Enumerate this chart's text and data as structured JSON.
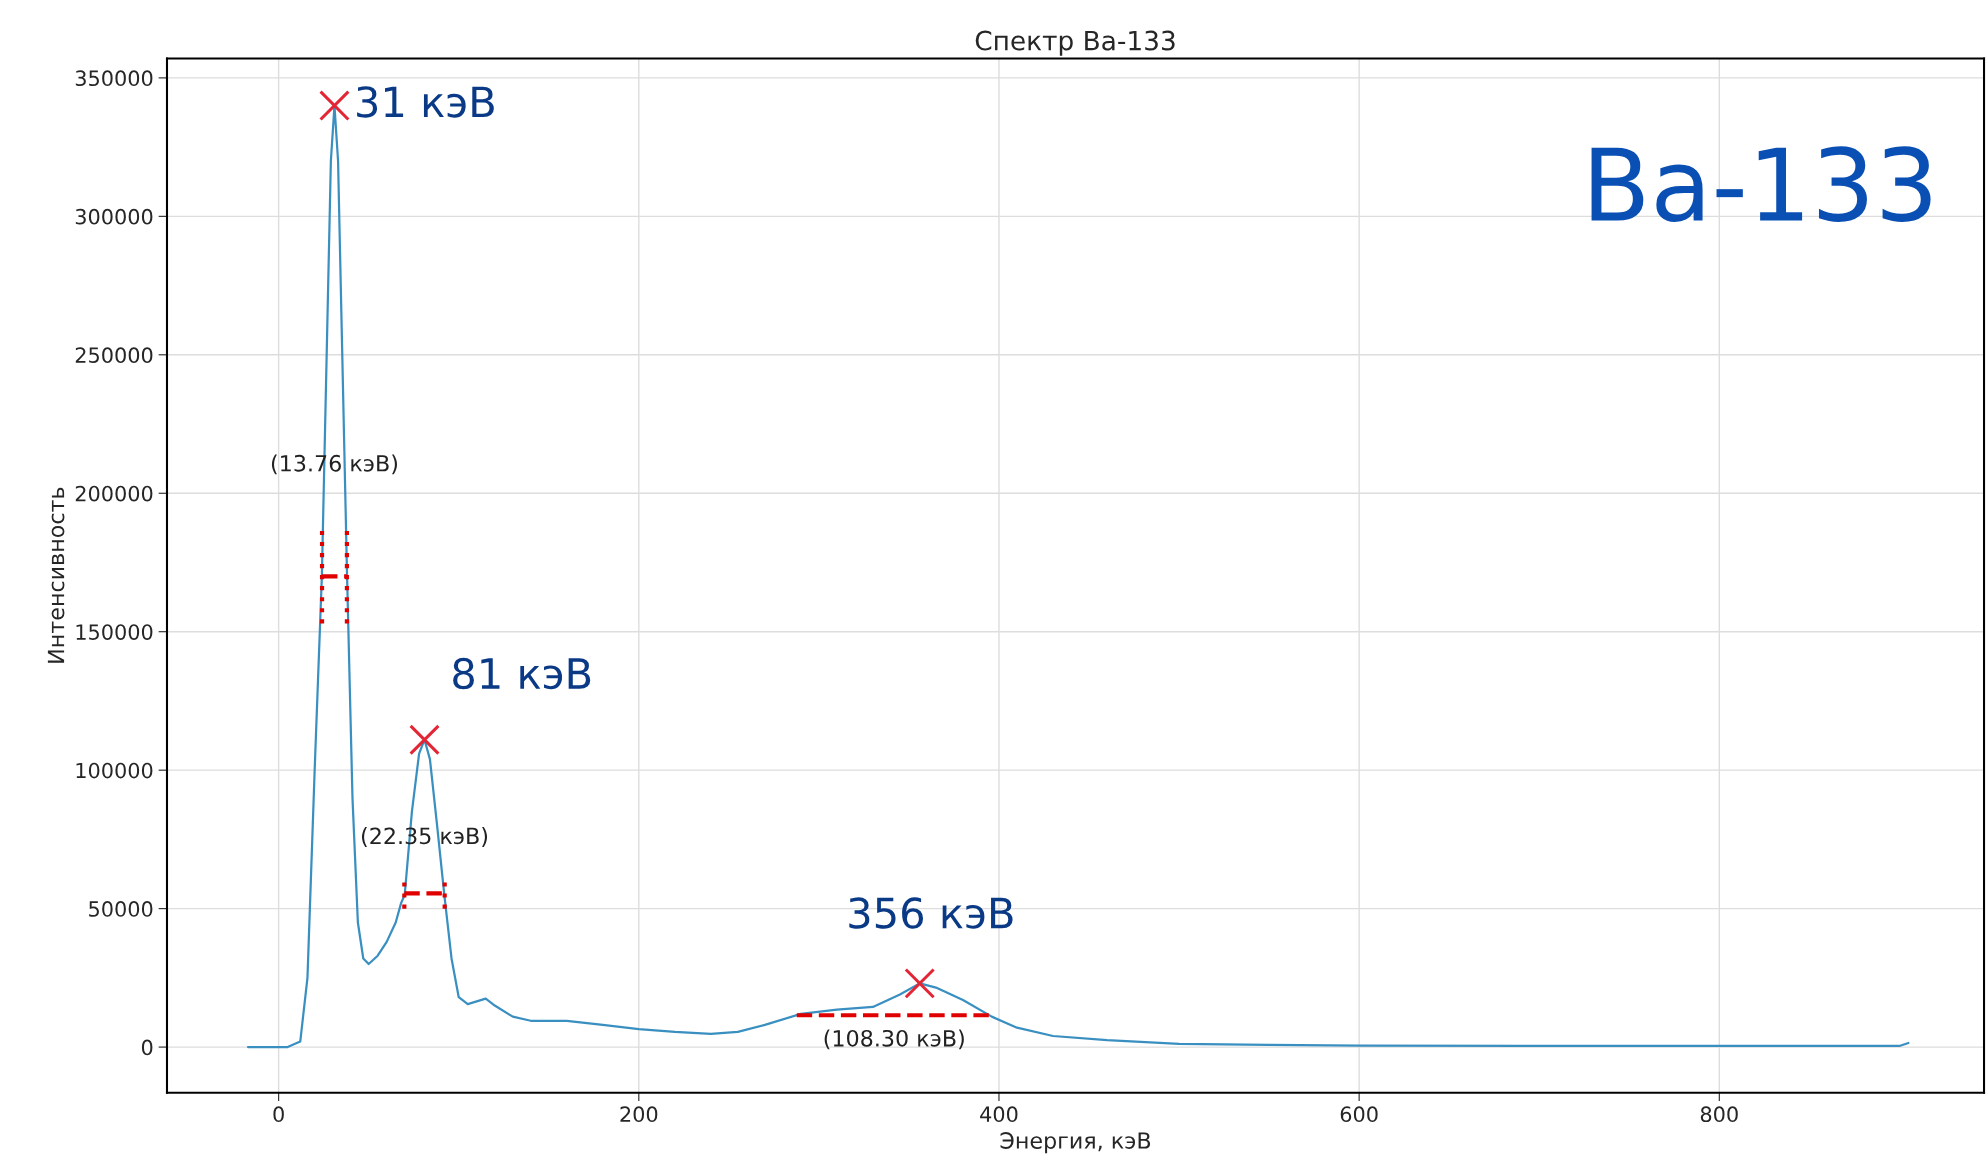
{
  "chart_data": {
    "type": "line",
    "title": "Спектр Ba-133",
    "xlabel": "Энергия, кэВ",
    "ylabel": "Интенсивность",
    "xlim": [
      -62,
      947
    ],
    "ylim": [
      -16500,
      357000
    ],
    "xticks": [
      0,
      200,
      400,
      600,
      800
    ],
    "yticks": [
      0,
      50000,
      100000,
      150000,
      200000,
      250000,
      300000,
      350000
    ],
    "grid": true,
    "series": [
      {
        "color": "#3a8fc1",
        "line_style": "solid",
        "x": [
          -17,
          5,
          12,
          16,
          20,
          24,
          27,
          29,
          31,
          33,
          35,
          38,
          41,
          44,
          47,
          50,
          55,
          60,
          65,
          68,
          70,
          74,
          78,
          81,
          84,
          88,
          92,
          96,
          100,
          105,
          110,
          115,
          120,
          130,
          140,
          160,
          180,
          200,
          220,
          240,
          255,
          270,
          290,
          310,
          330,
          345,
          356,
          365,
          380,
          396,
          410,
          430,
          460,
          500,
          550,
          600,
          700,
          800,
          895,
          900,
          905
        ],
        "values": [
          0,
          0,
          2000,
          25000,
          100000,
          170000,
          260000,
          320000,
          340000,
          320000,
          260000,
          170000,
          90000,
          45000,
          32000,
          30000,
          33000,
          38000,
          45000,
          52000,
          55000,
          85000,
          106000,
          111000,
          104000,
          80000,
          55000,
          32000,
          18000,
          15500,
          16500,
          17500,
          15000,
          11000,
          9500,
          9500,
          8000,
          6500,
          5500,
          4800,
          5500,
          8000,
          12000,
          13500,
          14500,
          19000,
          23000,
          21500,
          17000,
          11000,
          7000,
          4000,
          2500,
          1200,
          800,
          500,
          400,
          400,
          400,
          400,
          1500
        ]
      },
      {
        "type": "scatter",
        "color": "#e32636",
        "marker": "cross",
        "x": [
          31,
          81,
          356
        ],
        "values": [
          340000,
          111000,
          23000
        ]
      },
      {
        "type": "line",
        "color": "#e00000",
        "line_style": "dashed",
        "x": [
          24.1,
          37.9
        ],
        "values": [
          170000,
          170000
        ]
      },
      {
        "type": "line",
        "color": "#e00000",
        "line_style": "dotted",
        "x": [
          24.1,
          24.1
        ],
        "values": [
          153000,
          187000
        ]
      },
      {
        "type": "line",
        "color": "#e00000",
        "line_style": "dotted",
        "x": [
          37.9,
          37.9
        ],
        "values": [
          153000,
          187000
        ]
      },
      {
        "type": "line",
        "color": "#e00000",
        "line_style": "dashed",
        "x": [
          69.8,
          92.2
        ],
        "values": [
          55500,
          55500
        ]
      },
      {
        "type": "line",
        "color": "#e00000",
        "line_style": "dotted",
        "x": [
          69.8,
          69.8
        ],
        "values": [
          50000,
          61000
        ]
      },
      {
        "type": "line",
        "color": "#e00000",
        "line_style": "dotted",
        "x": [
          92.2,
          92.2
        ],
        "values": [
          50000,
          61000
        ]
      },
      {
        "type": "line",
        "color": "#e00000",
        "line_style": "dashed",
        "x": [
          287.7,
          396
        ],
        "values": [
          11500,
          11500
        ]
      }
    ],
    "annotations": [
      "31 кэВ",
      "81 кэВ",
      "356 кэВ",
      "(13.76 кэВ)",
      "(22.35 кэВ)",
      "(108.30 кэВ)",
      "Ba-133"
    ]
  }
}
